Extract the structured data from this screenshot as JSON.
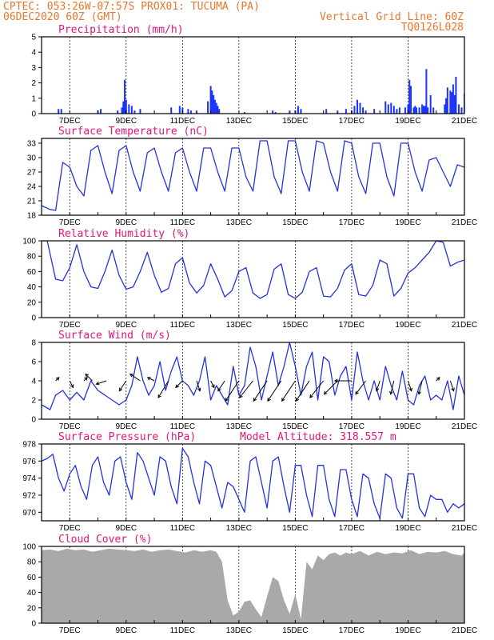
{
  "header": {
    "line1": "CPTEC:   053:26W-07:57S   PROX01: TUCUMA (PA)",
    "line2": "06DEC2020 60Z (GMT)",
    "grid_note": "Vertical Grid Line: 60Z",
    "code": "TQ0126L028"
  },
  "x_axis": {
    "start_day": 6,
    "end_day": 21,
    "tick_labels": [
      "7DEC",
      "9DEC",
      "11DEC",
      "13DEC",
      "15DEC",
      "17DEC",
      "19DEC",
      "21DEC"
    ]
  },
  "colors": {
    "series": "#2233dd",
    "bars": "#1a33ff",
    "cloud": "#a9a9a9",
    "title": "#e0157a",
    "header": "#e8762b"
  },
  "chart_data": [
    {
      "id": "precipitation",
      "type": "bar",
      "title": "Precipitation (mm/h)",
      "ylim": [
        0,
        5
      ],
      "yticks": [
        0,
        1,
        2,
        3,
        4,
        5
      ],
      "x": [
        6.6,
        6.7,
        8.0,
        8.1,
        8.7,
        8.85,
        8.9,
        8.95,
        9.0,
        9.1,
        9.2,
        9.3,
        9.5,
        10.6,
        10.9,
        11.0,
        11.2,
        11.3,
        11.5,
        11.9,
        12.0,
        12.05,
        12.1,
        12.15,
        12.2,
        12.25,
        12.3,
        13.2,
        14.2,
        14.3,
        14.8,
        15.0,
        15.1,
        15.2,
        16.1,
        16.5,
        16.8,
        17.0,
        17.1,
        17.2,
        17.3,
        17.4,
        17.5,
        17.8,
        18.2,
        18.3,
        18.4,
        18.5,
        18.6,
        18.7,
        18.9,
        19.0,
        19.05,
        19.1,
        19.2,
        19.25,
        19.3,
        19.4,
        19.5,
        19.55,
        19.6,
        19.65,
        19.7,
        19.8,
        19.9,
        20.3,
        20.35,
        20.4,
        20.5,
        20.55,
        20.6,
        20.65,
        20.7,
        20.8,
        20.9,
        21.0
      ],
      "values": [
        0.3,
        0.3,
        0.2,
        0.3,
        0.2,
        0.4,
        0.8,
        2.2,
        0.9,
        0.6,
        0.5,
        0.2,
        0.3,
        0.4,
        0.5,
        0.4,
        0.3,
        0.2,
        0.2,
        0.8,
        1.8,
        1.5,
        1.2,
        0.9,
        0.7,
        0.5,
        0.3,
        0.1,
        0.2,
        0.1,
        0.2,
        0.2,
        0.5,
        0.3,
        0.3,
        0.2,
        0.3,
        0.2,
        0.5,
        0.9,
        0.7,
        0.4,
        0.2,
        0.3,
        0.8,
        0.6,
        0.7,
        0.5,
        0.3,
        0.4,
        0.4,
        0.6,
        2.2,
        1.8,
        0.4,
        0.5,
        0.4,
        0.4,
        0.6,
        0.5,
        0.5,
        2.9,
        0.4,
        1.2,
        0.4,
        0.6,
        1.0,
        1.7,
        1.5,
        1.4,
        1.9,
        1.2,
        2.4,
        0.6,
        0.4,
        1.3
      ]
    },
    {
      "id": "temperature",
      "type": "line",
      "title": "Surface Temperature (nC)",
      "ylim": [
        18,
        34
      ],
      "yticks": [
        18,
        21,
        24,
        27,
        30,
        33
      ],
      "x": [
        6.0,
        6.3,
        6.5,
        6.75,
        7.0,
        7.25,
        7.5,
        7.75,
        8.0,
        8.25,
        8.5,
        8.75,
        9.0,
        9.25,
        9.5,
        9.75,
        10.0,
        10.25,
        10.5,
        10.75,
        11.0,
        11.25,
        11.5,
        11.75,
        12.0,
        12.25,
        12.5,
        12.75,
        13.0,
        13.25,
        13.5,
        13.75,
        14.0,
        14.25,
        14.5,
        14.75,
        15.0,
        15.25,
        15.5,
        15.75,
        16.0,
        16.25,
        16.5,
        16.75,
        17.0,
        17.25,
        17.5,
        17.75,
        18.0,
        18.25,
        18.5,
        18.75,
        19.0,
        19.25,
        19.5,
        19.75,
        20.0,
        20.25,
        20.5,
        20.75,
        21.0
      ],
      "values": [
        20,
        19.2,
        19,
        29,
        28,
        24,
        22,
        31.5,
        32.5,
        27,
        22.5,
        31.5,
        32.5,
        27,
        23,
        31,
        32,
        27,
        23,
        31,
        32,
        27,
        23,
        32,
        32,
        27,
        23,
        32,
        32,
        26,
        23,
        33.5,
        33.5,
        26,
        22.5,
        33.5,
        33.5,
        27,
        23,
        33.5,
        33,
        27,
        23,
        33.5,
        33,
        26,
        22.5,
        33,
        33,
        26,
        22,
        33,
        33,
        27,
        23,
        29.5,
        30,
        27,
        24,
        28.5,
        28
      ]
    },
    {
      "id": "humidity",
      "type": "line",
      "title": "Relative Humidity (%)",
      "ylim": [
        0,
        100
      ],
      "yticks": [
        0,
        20,
        40,
        60,
        80,
        100
      ],
      "x": [
        6.0,
        6.2,
        6.5,
        6.75,
        7.0,
        7.25,
        7.5,
        7.75,
        8.0,
        8.25,
        8.5,
        8.75,
        9.0,
        9.25,
        9.5,
        9.75,
        10.0,
        10.25,
        10.5,
        10.75,
        11.0,
        11.25,
        11.5,
        11.75,
        12.0,
        12.25,
        12.5,
        12.75,
        13.0,
        13.25,
        13.5,
        13.75,
        14.0,
        14.25,
        14.5,
        14.75,
        15.0,
        15.25,
        15.5,
        15.75,
        16.0,
        16.25,
        16.5,
        16.75,
        17.0,
        17.25,
        17.5,
        17.75,
        18.0,
        18.25,
        18.5,
        18.75,
        19.0,
        19.25,
        19.5,
        19.75,
        20.0,
        20.25,
        20.5,
        20.75,
        21.0
      ],
      "values": [
        100,
        100,
        50,
        48,
        65,
        95,
        60,
        40,
        38,
        60,
        88,
        55,
        37,
        40,
        60,
        85,
        55,
        33,
        38,
        70,
        78,
        45,
        32,
        42,
        70,
        50,
        27,
        35,
        60,
        65,
        32,
        25,
        30,
        63,
        70,
        30,
        25,
        33,
        60,
        65,
        28,
        27,
        38,
        62,
        70,
        30,
        28,
        42,
        75,
        70,
        28,
        38,
        58,
        65,
        75,
        85,
        100,
        98,
        67,
        72,
        75
      ]
    },
    {
      "id": "wind",
      "type": "line",
      "title": "Surface Wind (m/s)",
      "ylim": [
        0,
        8
      ],
      "yticks": [
        0,
        2,
        4,
        6,
        8
      ],
      "x": [
        6.0,
        6.3,
        6.5,
        6.75,
        7.0,
        7.25,
        7.5,
        7.75,
        8.0,
        8.25,
        8.5,
        8.75,
        9.0,
        9.2,
        9.4,
        9.6,
        9.8,
        10.0,
        10.2,
        10.4,
        10.6,
        10.8,
        11.0,
        11.2,
        11.4,
        11.6,
        11.8,
        12.0,
        12.2,
        12.4,
        12.6,
        12.8,
        13.0,
        13.2,
        13.4,
        13.6,
        13.8,
        14.0,
        14.2,
        14.4,
        14.6,
        14.8,
        15.0,
        15.2,
        15.4,
        15.6,
        15.8,
        16.0,
        16.2,
        16.4,
        16.6,
        16.8,
        17.0,
        17.2,
        17.4,
        17.6,
        17.8,
        18.0,
        18.2,
        18.4,
        18.6,
        18.8,
        19.0,
        19.2,
        19.4,
        19.6,
        19.8,
        20.0,
        20.2,
        20.4,
        20.6,
        20.8,
        21.0
      ],
      "values": [
        1.5,
        1.0,
        2.5,
        3.0,
        2.0,
        2.8,
        2.0,
        4.0,
        3.0,
        2.5,
        2.0,
        1.5,
        2.0,
        3.5,
        6.5,
        4.0,
        2.5,
        3.5,
        6.0,
        3.0,
        5.0,
        6.5,
        4.0,
        3.5,
        2.5,
        4.0,
        6.5,
        2.0,
        3.5,
        2.5,
        1.5,
        5.5,
        2.5,
        3.5,
        7.5,
        5.5,
        2.0,
        4.5,
        7.0,
        3.5,
        5.5,
        8.0,
        5.5,
        2.5,
        5.5,
        7.0,
        2.0,
        6.5,
        6.0,
        2.5,
        4.5,
        5.5,
        2.0,
        7.0,
        4.0,
        2.0,
        4.0,
        2.0,
        5.5,
        3.5,
        2.0,
        5.0,
        2.0,
        1.5,
        3.5,
        4.5,
        2.0,
        2.5,
        2.0,
        4.0,
        1.0,
        4.5,
        2.5
      ],
      "vectors": [
        {
          "x": 6.5,
          "u": 1,
          "v": 1
        },
        {
          "x": 7.0,
          "u": 1,
          "v": -2
        },
        {
          "x": 7.5,
          "u": 1,
          "v": 1
        },
        {
          "x": 7.8,
          "u": -2,
          "v": 2
        },
        {
          "x": 8.3,
          "u": -3,
          "v": -1
        },
        {
          "x": 9.0,
          "u": -2,
          "v": -3
        },
        {
          "x": 9.5,
          "u": -3,
          "v": 2
        },
        {
          "x": 10.0,
          "u": -2,
          "v": 1
        },
        {
          "x": 10.5,
          "u": -3,
          "v": -5
        },
        {
          "x": 11.0,
          "u": -2,
          "v": -2
        },
        {
          "x": 11.5,
          "u": 1,
          "v": -3
        },
        {
          "x": 12.0,
          "u": 1,
          "v": -2
        },
        {
          "x": 12.5,
          "u": -2,
          "v": -3
        },
        {
          "x": 13.0,
          "u": -4,
          "v": -6
        },
        {
          "x": 13.5,
          "u": -4,
          "v": -5
        },
        {
          "x": 14.0,
          "u": -4,
          "v": -6
        },
        {
          "x": 14.5,
          "u": -4,
          "v": -6
        },
        {
          "x": 15.0,
          "u": -4,
          "v": -6
        },
        {
          "x": 15.5,
          "u": -4,
          "v": -6
        },
        {
          "x": 16.0,
          "u": -4,
          "v": -5
        },
        {
          "x": 16.5,
          "u": -4,
          "v": -4
        },
        {
          "x": 17.0,
          "u": -5,
          "v": 0
        },
        {
          "x": 17.5,
          "u": -3,
          "v": -4
        },
        {
          "x": 18.0,
          "u": -1,
          "v": -3
        },
        {
          "x": 18.5,
          "u": -1,
          "v": -4
        },
        {
          "x": 19.0,
          "u": 1,
          "v": -3
        },
        {
          "x": 19.5,
          "u": -1,
          "v": -4
        },
        {
          "x": 20.0,
          "u": 1,
          "v": 1
        },
        {
          "x": 20.5,
          "u": 1,
          "v": -3
        },
        {
          "x": 21.0,
          "u": 1,
          "v": -2
        }
      ]
    },
    {
      "id": "pressure",
      "type": "line",
      "title": "Surface Pressure (hPa)",
      "annotation": "Model Altitude: 318.557 m",
      "ylim": [
        969,
        978
      ],
      "yticks": [
        970,
        972,
        974,
        976,
        978
      ],
      "x": [
        6.0,
        6.2,
        6.4,
        6.6,
        6.8,
        7.0,
        7.2,
        7.4,
        7.6,
        7.8,
        8.0,
        8.2,
        8.4,
        8.6,
        8.8,
        9.0,
        9.2,
        9.4,
        9.6,
        9.8,
        10.0,
        10.2,
        10.4,
        10.6,
        10.8,
        11.0,
        11.2,
        11.4,
        11.6,
        11.8,
        12.0,
        12.2,
        12.4,
        12.6,
        12.8,
        13.0,
        13.2,
        13.4,
        13.6,
        13.8,
        14.0,
        14.2,
        14.4,
        14.6,
        14.8,
        15.0,
        15.2,
        15.4,
        15.6,
        15.8,
        16.0,
        16.2,
        16.4,
        16.6,
        16.8,
        17.0,
        17.2,
        17.4,
        17.6,
        17.8,
        18.0,
        18.2,
        18.4,
        18.6,
        18.8,
        19.0,
        19.2,
        19.4,
        19.6,
        19.8,
        20.0,
        20.2,
        20.4,
        20.6,
        20.8,
        21.0
      ],
      "values": [
        976,
        976.3,
        976.8,
        974,
        972.5,
        974.5,
        975.5,
        973,
        971.5,
        975.5,
        976.5,
        973.5,
        972,
        976,
        976.5,
        973.5,
        971.5,
        977,
        976,
        974,
        972,
        976.5,
        976,
        973,
        971,
        977.5,
        976.5,
        973.5,
        971,
        976,
        975.5,
        973,
        970.5,
        973.5,
        973,
        971.5,
        970,
        976,
        976.5,
        973.5,
        970.5,
        976,
        976.5,
        973,
        970,
        975.5,
        975.5,
        972,
        969.5,
        975.5,
        975.5,
        971.5,
        969.5,
        975,
        975,
        971.5,
        969.5,
        974.5,
        974,
        971,
        969.3,
        974.5,
        974,
        970.5,
        969.3,
        974.5,
        974.5,
        970.5,
        969.5,
        972,
        971.5,
        971.5,
        970,
        971,
        970.5,
        971
      ]
    },
    {
      "id": "cloud",
      "type": "area",
      "title": "Cloud Cover (%)",
      "ylim": [
        0,
        100
      ],
      "yticks": [
        0,
        20,
        40,
        60,
        80,
        100
      ],
      "x": [
        6.0,
        6.3,
        6.6,
        6.9,
        7.2,
        7.5,
        7.8,
        8.1,
        8.4,
        8.7,
        9.0,
        9.3,
        9.6,
        9.9,
        10.2,
        10.5,
        10.8,
        11.1,
        11.4,
        11.7,
        12.0,
        12.2,
        12.4,
        12.6,
        12.8,
        13.0,
        13.2,
        13.4,
        13.6,
        13.8,
        14.0,
        14.2,
        14.4,
        14.6,
        14.8,
        15.0,
        15.2,
        15.4,
        15.6,
        15.8,
        16.0,
        16.2,
        16.4,
        16.6,
        16.8,
        17.0,
        17.3,
        17.6,
        17.9,
        18.2,
        18.5,
        18.8,
        19.1,
        19.4,
        19.7,
        20.0,
        20.3,
        20.6,
        20.9,
        21.0
      ],
      "values": [
        95,
        96,
        94,
        97,
        95,
        96,
        93,
        95,
        97,
        96,
        95,
        94,
        96,
        93,
        95,
        96,
        94,
        92,
        95,
        93,
        95,
        93,
        80,
        30,
        10,
        15,
        28,
        30,
        18,
        8,
        35,
        60,
        55,
        30,
        12,
        38,
        5,
        80,
        70,
        88,
        82,
        90,
        92,
        88,
        92,
        90,
        94,
        88,
        93,
        90,
        92,
        91,
        95,
        90,
        93,
        92,
        94,
        90,
        88,
        92
      ]
    }
  ]
}
